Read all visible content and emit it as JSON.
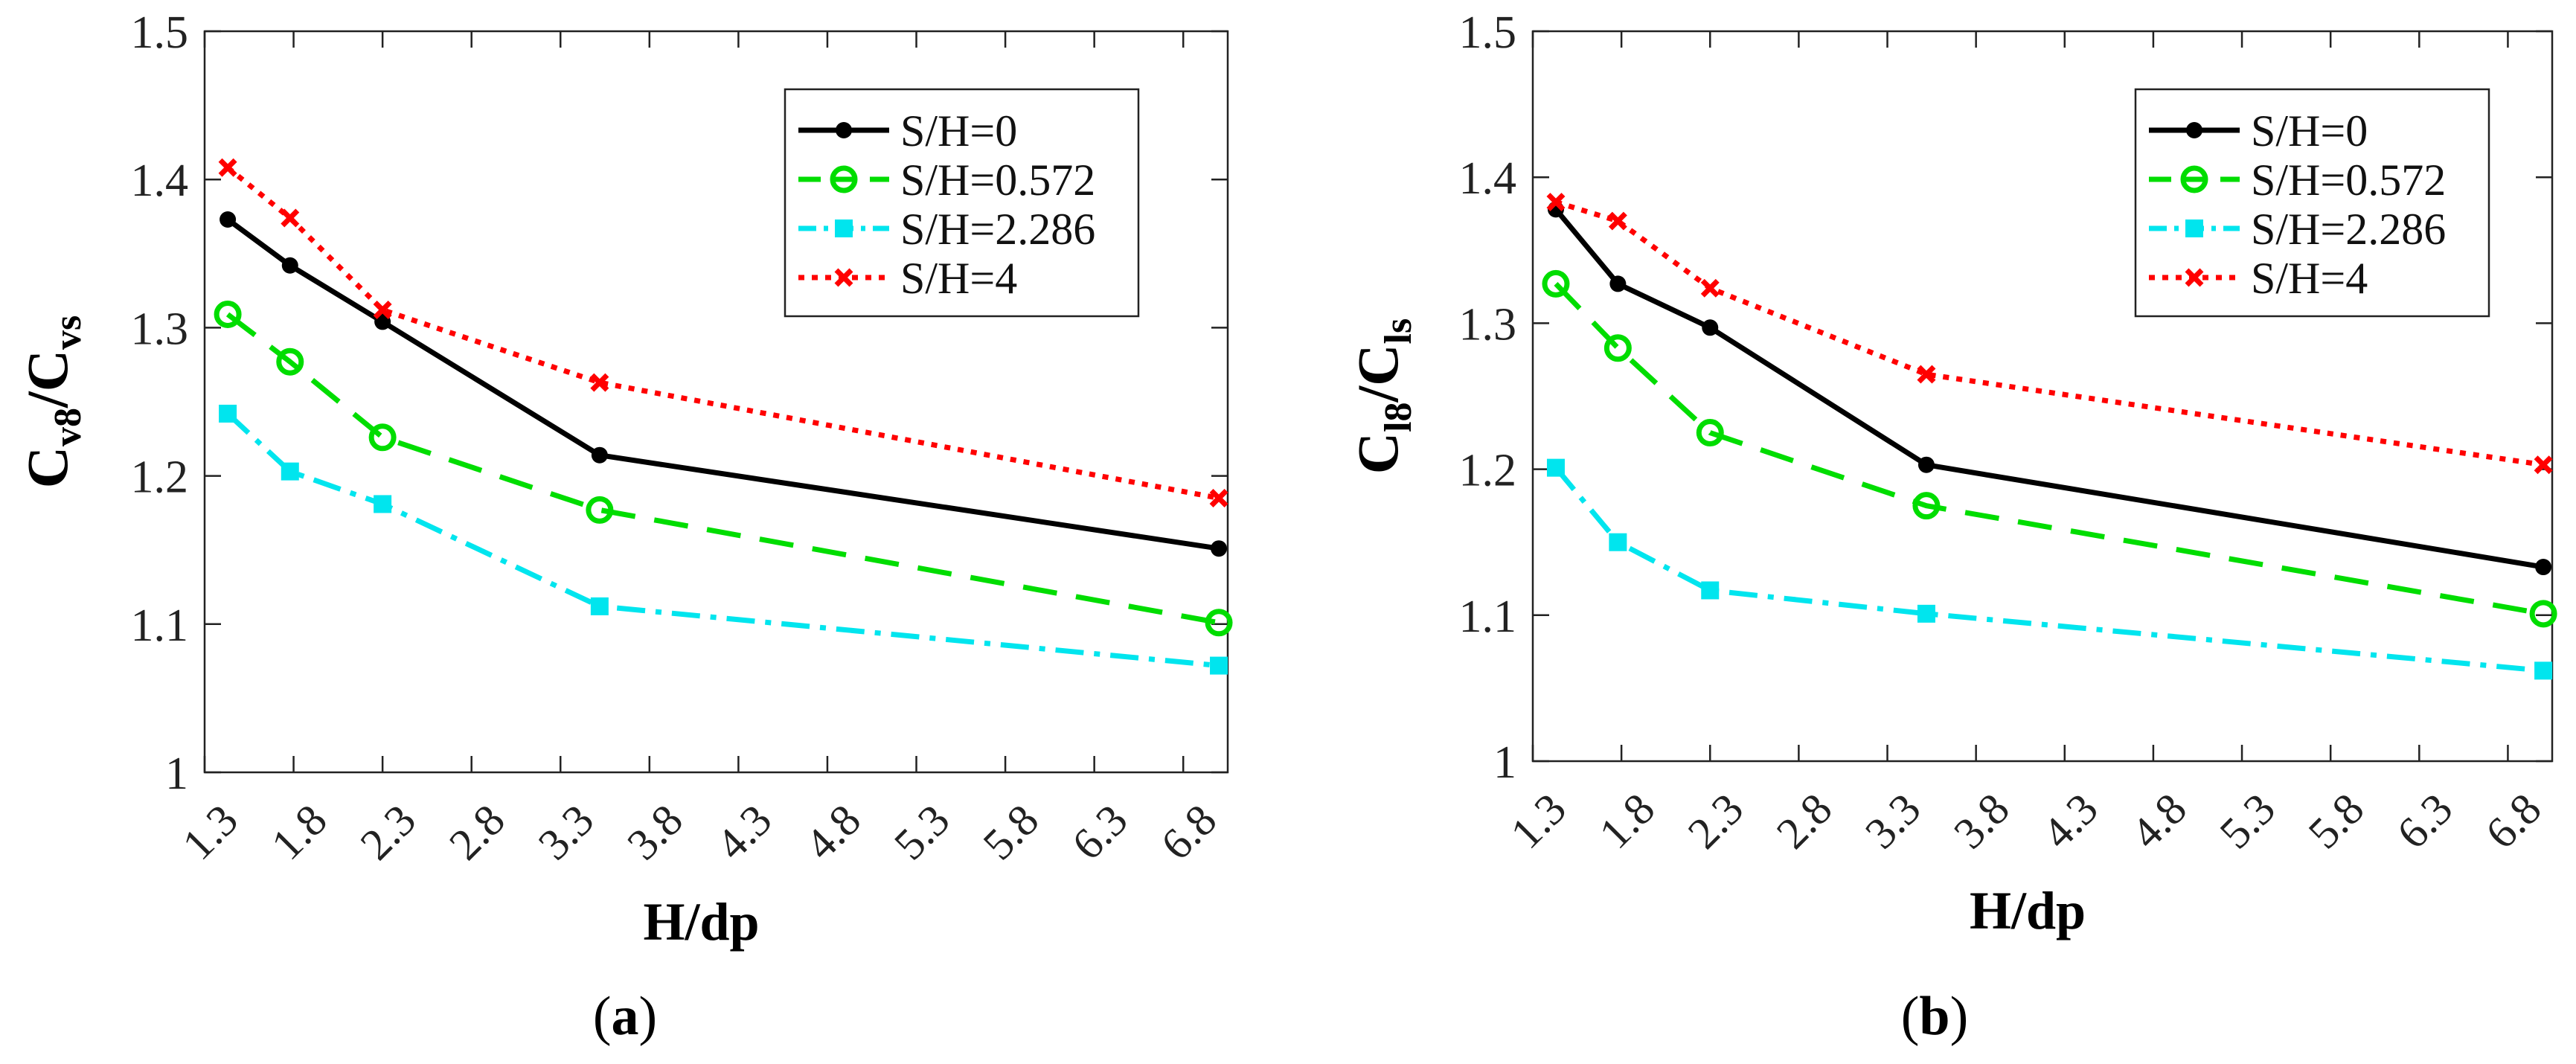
{
  "chart_data": [
    {
      "type": "line",
      "panel_label": "(a)",
      "title": "",
      "xlabel": "H/dp",
      "ylabel": {
        "main": "C",
        "sub1": "v8",
        "slash": "/C",
        "sub2": "vs"
      },
      "xlim": [
        1.3,
        7.05
      ],
      "ylim": [
        1.0,
        1.5
      ],
      "xticks": [
        "1.3",
        "1.8",
        "2.3",
        "2.8",
        "3.3",
        "3.8",
        "4.3",
        "4.8",
        "5.3",
        "5.8",
        "6.3",
        "6.8"
      ],
      "yticks": [
        "1",
        "1.1",
        "1.2",
        "1.3",
        "1.4",
        "1.5"
      ],
      "x": [
        1.43,
        1.78,
        2.3,
        3.52,
        7.0
      ],
      "series": [
        {
          "name": "S/H=0",
          "values": [
            1.373,
            1.342,
            1.304,
            1.214,
            1.151
          ],
          "color": "#000000"
        },
        {
          "name": "S/H=0.572",
          "values": [
            1.309,
            1.277,
            1.226,
            1.177,
            1.101
          ],
          "color": "#00dd00"
        },
        {
          "name": "S/H=2.286",
          "values": [
            1.242,
            1.203,
            1.181,
            1.112,
            1.072
          ],
          "color": "#00e5ee"
        },
        {
          "name": "S/H=4",
          "values": [
            1.408,
            1.374,
            1.312,
            1.263,
            1.185
          ],
          "color": "#ff0000"
        }
      ],
      "legend": "top-right"
    },
    {
      "type": "line",
      "panel_label": "(b)",
      "title": "",
      "xlabel": "H/dp",
      "ylabel": {
        "main": "C",
        "sub1": "l8",
        "slash": "/C",
        "sub2": "ls"
      },
      "xlim": [
        1.3,
        7.05
      ],
      "ylim": [
        1.0,
        1.5
      ],
      "xticks": [
        "1.3",
        "1.8",
        "2.3",
        "2.8",
        "3.3",
        "3.8",
        "4.3",
        "4.8",
        "5.3",
        "5.8",
        "6.3",
        "6.8"
      ],
      "yticks": [
        "1",
        "1.1",
        "1.2",
        "1.3",
        "1.4",
        "1.5"
      ],
      "x": [
        1.43,
        1.78,
        2.3,
        3.52,
        7.0
      ],
      "series": [
        {
          "name": "S/H=0",
          "values": [
            1.378,
            1.327,
            1.297,
            1.203,
            1.133
          ],
          "color": "#000000"
        },
        {
          "name": "S/H=0.572",
          "values": [
            1.327,
            1.283,
            1.225,
            1.175,
            1.101
          ],
          "color": "#00dd00"
        },
        {
          "name": "S/H=2.286",
          "values": [
            1.201,
            1.15,
            1.117,
            1.101,
            1.062
          ],
          "color": "#00e5ee"
        },
        {
          "name": "S/H=4",
          "values": [
            1.383,
            1.37,
            1.324,
            1.265,
            1.203
          ],
          "color": "#ff0000"
        }
      ],
      "legend": "top-right"
    }
  ]
}
